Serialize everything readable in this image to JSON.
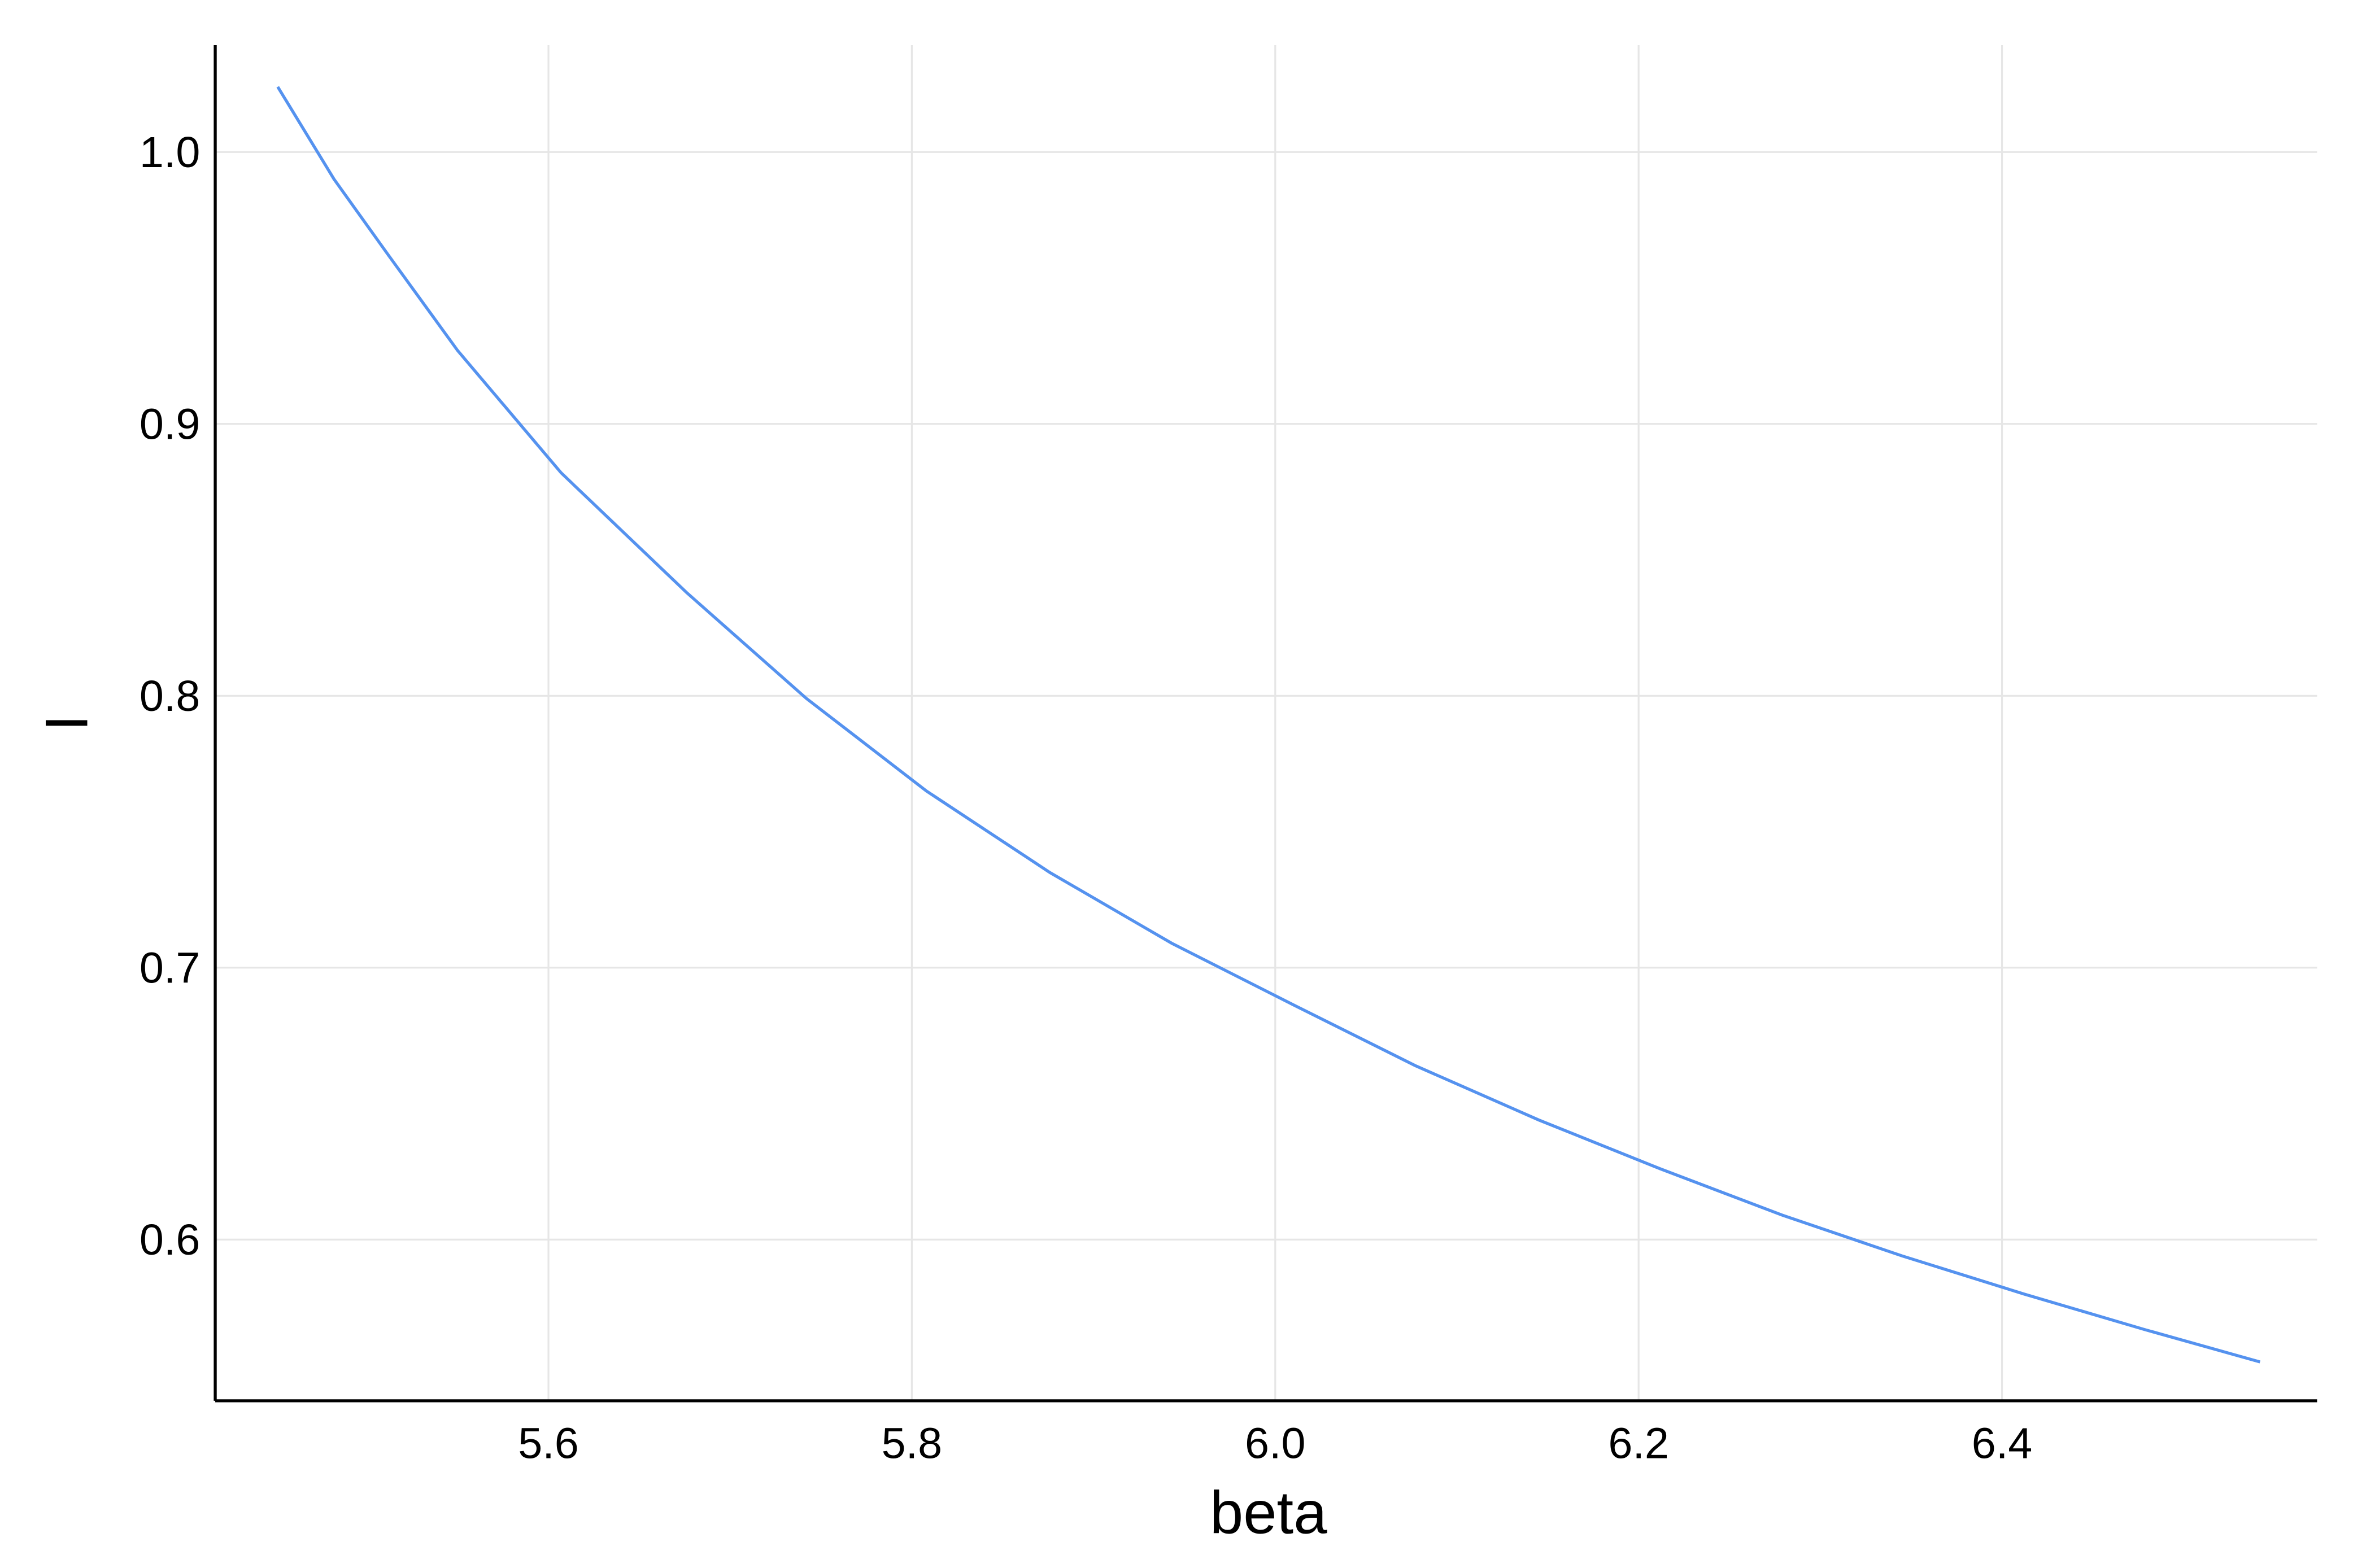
{
  "chart_data": {
    "type": "line",
    "xlabel": "beta",
    "ylabel": "I",
    "x": [
      5.451,
      5.482,
      5.512,
      5.55,
      5.607,
      5.676,
      5.742,
      5.808,
      5.876,
      5.943,
      6.011,
      6.077,
      6.145,
      6.212,
      6.279,
      6.345,
      6.412,
      6.478,
      6.542
    ],
    "series": [
      {
        "color": "#5592ef",
        "values": [
          1.024,
          0.99,
          0.962,
          0.927,
          0.882,
          0.838,
          0.799,
          0.765,
          0.735,
          0.709,
          0.686,
          0.664,
          0.644,
          0.626,
          0.609,
          0.594,
          0.58,
          0.567,
          0.555
        ]
      }
    ],
    "xlim": [
      5.4166,
      6.5734
    ],
    "ylim": [
      0.5407,
      1.0393
    ],
    "xticks": [
      5.6,
      5.8,
      {
        "value": 6.0,
        "label": "6.0"
      },
      6.2,
      6.4
    ],
    "yticks": [
      0.6,
      0.7,
      0.8,
      0.9,
      {
        "value": 1.0,
        "label": "1.0"
      }
    ],
    "grid": true
  }
}
